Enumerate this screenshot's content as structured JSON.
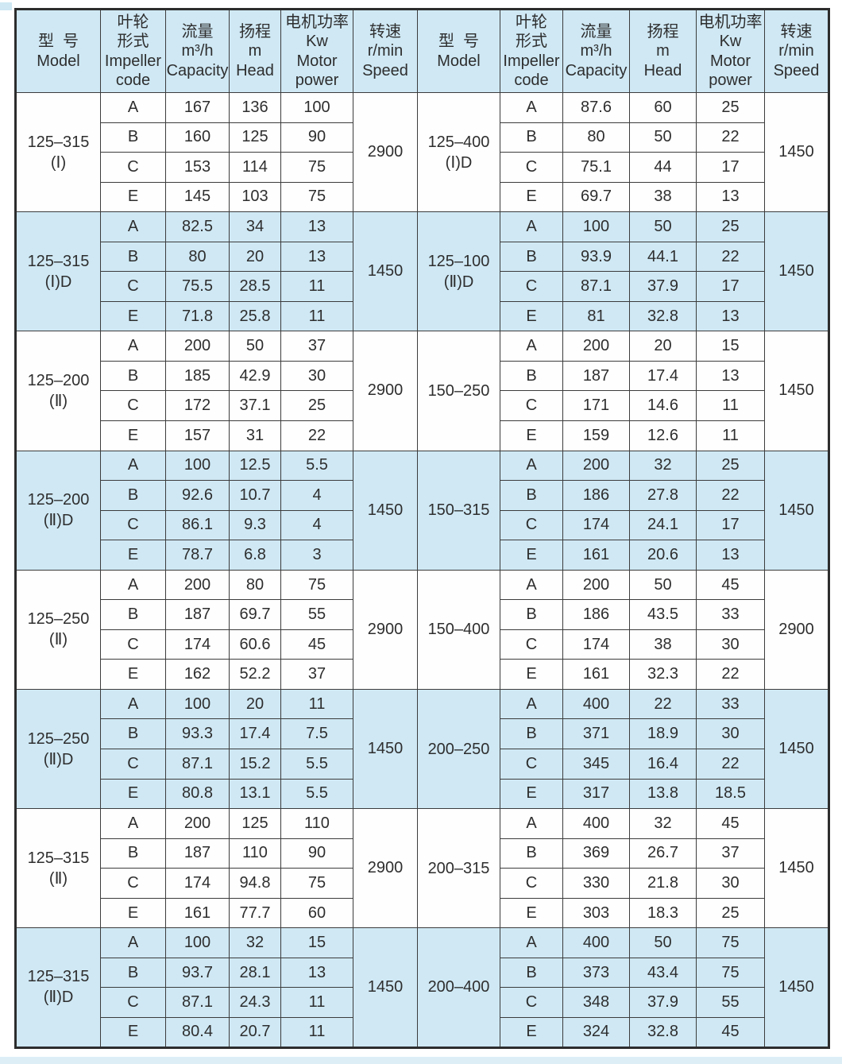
{
  "page": {
    "accent_blue": "#cfe8f4",
    "border_color": "#3c3c3c",
    "text_color": "#2e2e2e"
  },
  "header": {
    "columns": [
      {
        "id": "model",
        "lines": [
          "型  号",
          "Model"
        ]
      },
      {
        "id": "impeller",
        "lines": [
          "叶轮",
          "形式",
          "Impeller",
          "code"
        ]
      },
      {
        "id": "capacity",
        "lines": [
          "流量",
          "m³/h",
          "Capacity"
        ]
      },
      {
        "id": "head",
        "lines": [
          "扬程",
          "m",
          "Head"
        ]
      },
      {
        "id": "power",
        "lines": [
          "电机功率",
          "Kw",
          "Motor",
          "power"
        ]
      },
      {
        "id": "speed",
        "lines": [
          "转速",
          "r/min",
          "Speed"
        ]
      }
    ]
  },
  "groups": [
    {
      "shaded": false,
      "left": {
        "model": [
          "125–315",
          "(Ⅰ)"
        ],
        "speed": "2900",
        "rows": [
          {
            "code": "A",
            "capacity": "167",
            "head": "136",
            "power": "100"
          },
          {
            "code": "B",
            "capacity": "160",
            "head": "125",
            "power": "90"
          },
          {
            "code": "C",
            "capacity": "153",
            "head": "114",
            "power": "75"
          },
          {
            "code": "E",
            "capacity": "145",
            "head": "103",
            "power": "75"
          }
        ]
      },
      "right": {
        "model": [
          "125–400",
          "(Ⅰ)D"
        ],
        "speed": "1450",
        "rows": [
          {
            "code": "A",
            "capacity": "87.6",
            "head": "60",
            "power": "25"
          },
          {
            "code": "B",
            "capacity": "80",
            "head": "50",
            "power": "22"
          },
          {
            "code": "C",
            "capacity": "75.1",
            "head": "44",
            "power": "17"
          },
          {
            "code": "E",
            "capacity": "69.7",
            "head": "38",
            "power": "13"
          }
        ]
      }
    },
    {
      "shaded": true,
      "left": {
        "model": [
          "125–315",
          "(Ⅰ)D"
        ],
        "speed": "1450",
        "rows": [
          {
            "code": "A",
            "capacity": "82.5",
            "head": "34",
            "power": "13"
          },
          {
            "code": "B",
            "capacity": "80",
            "head": "20",
            "power": "13"
          },
          {
            "code": "C",
            "capacity": "75.5",
            "head": "28.5",
            "power": "11"
          },
          {
            "code": "E",
            "capacity": "71.8",
            "head": "25.8",
            "power": "11"
          }
        ]
      },
      "right": {
        "model": [
          "125–100",
          "(Ⅱ)D"
        ],
        "speed": "1450",
        "rows": [
          {
            "code": "A",
            "capacity": "100",
            "head": "50",
            "power": "25"
          },
          {
            "code": "B",
            "capacity": "93.9",
            "head": "44.1",
            "power": "22"
          },
          {
            "code": "C",
            "capacity": "87.1",
            "head": "37.9",
            "power": "17"
          },
          {
            "code": "E",
            "capacity": "81",
            "head": "32.8",
            "power": "13"
          }
        ]
      }
    },
    {
      "shaded": false,
      "left": {
        "model": [
          "125–200",
          "(Ⅱ)"
        ],
        "speed": "2900",
        "rows": [
          {
            "code": "A",
            "capacity": "200",
            "head": "50",
            "power": "37"
          },
          {
            "code": "B",
            "capacity": "185",
            "head": "42.9",
            "power": "30"
          },
          {
            "code": "C",
            "capacity": "172",
            "head": "37.1",
            "power": "25"
          },
          {
            "code": "E",
            "capacity": "157",
            "head": "31",
            "power": "22"
          }
        ]
      },
      "right": {
        "model": [
          "150–250"
        ],
        "speed": "1450",
        "rows": [
          {
            "code": "A",
            "capacity": "200",
            "head": "20",
            "power": "15"
          },
          {
            "code": "B",
            "capacity": "187",
            "head": "17.4",
            "power": "13"
          },
          {
            "code": "C",
            "capacity": "171",
            "head": "14.6",
            "power": "11"
          },
          {
            "code": "E",
            "capacity": "159",
            "head": "12.6",
            "power": "11"
          }
        ]
      }
    },
    {
      "shaded": true,
      "left": {
        "model": [
          "125–200",
          "(Ⅱ)D"
        ],
        "speed": "1450",
        "rows": [
          {
            "code": "A",
            "capacity": "100",
            "head": "12.5",
            "power": "5.5"
          },
          {
            "code": "B",
            "capacity": "92.6",
            "head": "10.7",
            "power": "4"
          },
          {
            "code": "C",
            "capacity": "86.1",
            "head": "9.3",
            "power": "4"
          },
          {
            "code": "E",
            "capacity": "78.7",
            "head": "6.8",
            "power": "3"
          }
        ]
      },
      "right": {
        "model": [
          "150–315"
        ],
        "speed": "1450",
        "rows": [
          {
            "code": "A",
            "capacity": "200",
            "head": "32",
            "power": "25"
          },
          {
            "code": "B",
            "capacity": "186",
            "head": "27.8",
            "power": "22"
          },
          {
            "code": "C",
            "capacity": "174",
            "head": "24.1",
            "power": "17"
          },
          {
            "code": "E",
            "capacity": "161",
            "head": "20.6",
            "power": "13"
          }
        ]
      }
    },
    {
      "shaded": false,
      "left": {
        "model": [
          "125–250",
          "(Ⅱ)"
        ],
        "speed": "2900",
        "rows": [
          {
            "code": "A",
            "capacity": "200",
            "head": "80",
            "power": "75"
          },
          {
            "code": "B",
            "capacity": "187",
            "head": "69.7",
            "power": "55"
          },
          {
            "code": "C",
            "capacity": "174",
            "head": "60.6",
            "power": "45"
          },
          {
            "code": "E",
            "capacity": "162",
            "head": "52.2",
            "power": "37"
          }
        ]
      },
      "right": {
        "model": [
          "150–400"
        ],
        "speed": "2900",
        "rows": [
          {
            "code": "A",
            "capacity": "200",
            "head": "50",
            "power": "45"
          },
          {
            "code": "B",
            "capacity": "186",
            "head": "43.5",
            "power": "33"
          },
          {
            "code": "C",
            "capacity": "174",
            "head": "38",
            "power": "30"
          },
          {
            "code": "E",
            "capacity": "161",
            "head": "32.3",
            "power": "22"
          }
        ]
      }
    },
    {
      "shaded": true,
      "left": {
        "model": [
          "125–250",
          "(Ⅱ)D"
        ],
        "speed": "1450",
        "rows": [
          {
            "code": "A",
            "capacity": "100",
            "head": "20",
            "power": "11"
          },
          {
            "code": "B",
            "capacity": "93.3",
            "head": "17.4",
            "power": "7.5"
          },
          {
            "code": "C",
            "capacity": "87.1",
            "head": "15.2",
            "power": "5.5"
          },
          {
            "code": "E",
            "capacity": "80.8",
            "head": "13.1",
            "power": "5.5"
          }
        ]
      },
      "right": {
        "model": [
          "200–250"
        ],
        "speed": "1450",
        "rows": [
          {
            "code": "A",
            "capacity": "400",
            "head": "22",
            "power": "33"
          },
          {
            "code": "B",
            "capacity": "371",
            "head": "18.9",
            "power": "30"
          },
          {
            "code": "C",
            "capacity": "345",
            "head": "16.4",
            "power": "22"
          },
          {
            "code": "E",
            "capacity": "317",
            "head": "13.8",
            "power": "18.5"
          }
        ]
      }
    },
    {
      "shaded": false,
      "left": {
        "model": [
          "125–315",
          "(Ⅱ)"
        ],
        "speed": "2900",
        "rows": [
          {
            "code": "A",
            "capacity": "200",
            "head": "125",
            "power": "110"
          },
          {
            "code": "B",
            "capacity": "187",
            "head": "110",
            "power": "90"
          },
          {
            "code": "C",
            "capacity": "174",
            "head": "94.8",
            "power": "75"
          },
          {
            "code": "E",
            "capacity": "161",
            "head": "77.7",
            "power": "60"
          }
        ]
      },
      "right": {
        "model": [
          "200–315"
        ],
        "speed": "1450",
        "rows": [
          {
            "code": "A",
            "capacity": "400",
            "head": "32",
            "power": "45"
          },
          {
            "code": "B",
            "capacity": "369",
            "head": "26.7",
            "power": "37"
          },
          {
            "code": "C",
            "capacity": "330",
            "head": "21.8",
            "power": "30"
          },
          {
            "code": "E",
            "capacity": "303",
            "head": "18.3",
            "power": "25"
          }
        ]
      }
    },
    {
      "shaded": true,
      "left": {
        "model": [
          "125–315",
          "(Ⅱ)D"
        ],
        "speed": "1450",
        "rows": [
          {
            "code": "A",
            "capacity": "100",
            "head": "32",
            "power": "15"
          },
          {
            "code": "B",
            "capacity": "93.7",
            "head": "28.1",
            "power": "13"
          },
          {
            "code": "C",
            "capacity": "87.1",
            "head": "24.3",
            "power": "11"
          },
          {
            "code": "E",
            "capacity": "80.4",
            "head": "20.7",
            "power": "11"
          }
        ]
      },
      "right": {
        "model": [
          "200–400"
        ],
        "speed": "1450",
        "rows": [
          {
            "code": "A",
            "capacity": "400",
            "head": "50",
            "power": "75"
          },
          {
            "code": "B",
            "capacity": "373",
            "head": "43.4",
            "power": "75"
          },
          {
            "code": "C",
            "capacity": "348",
            "head": "37.9",
            "power": "55"
          },
          {
            "code": "E",
            "capacity": "324",
            "head": "32.8",
            "power": "45"
          }
        ]
      }
    }
  ]
}
